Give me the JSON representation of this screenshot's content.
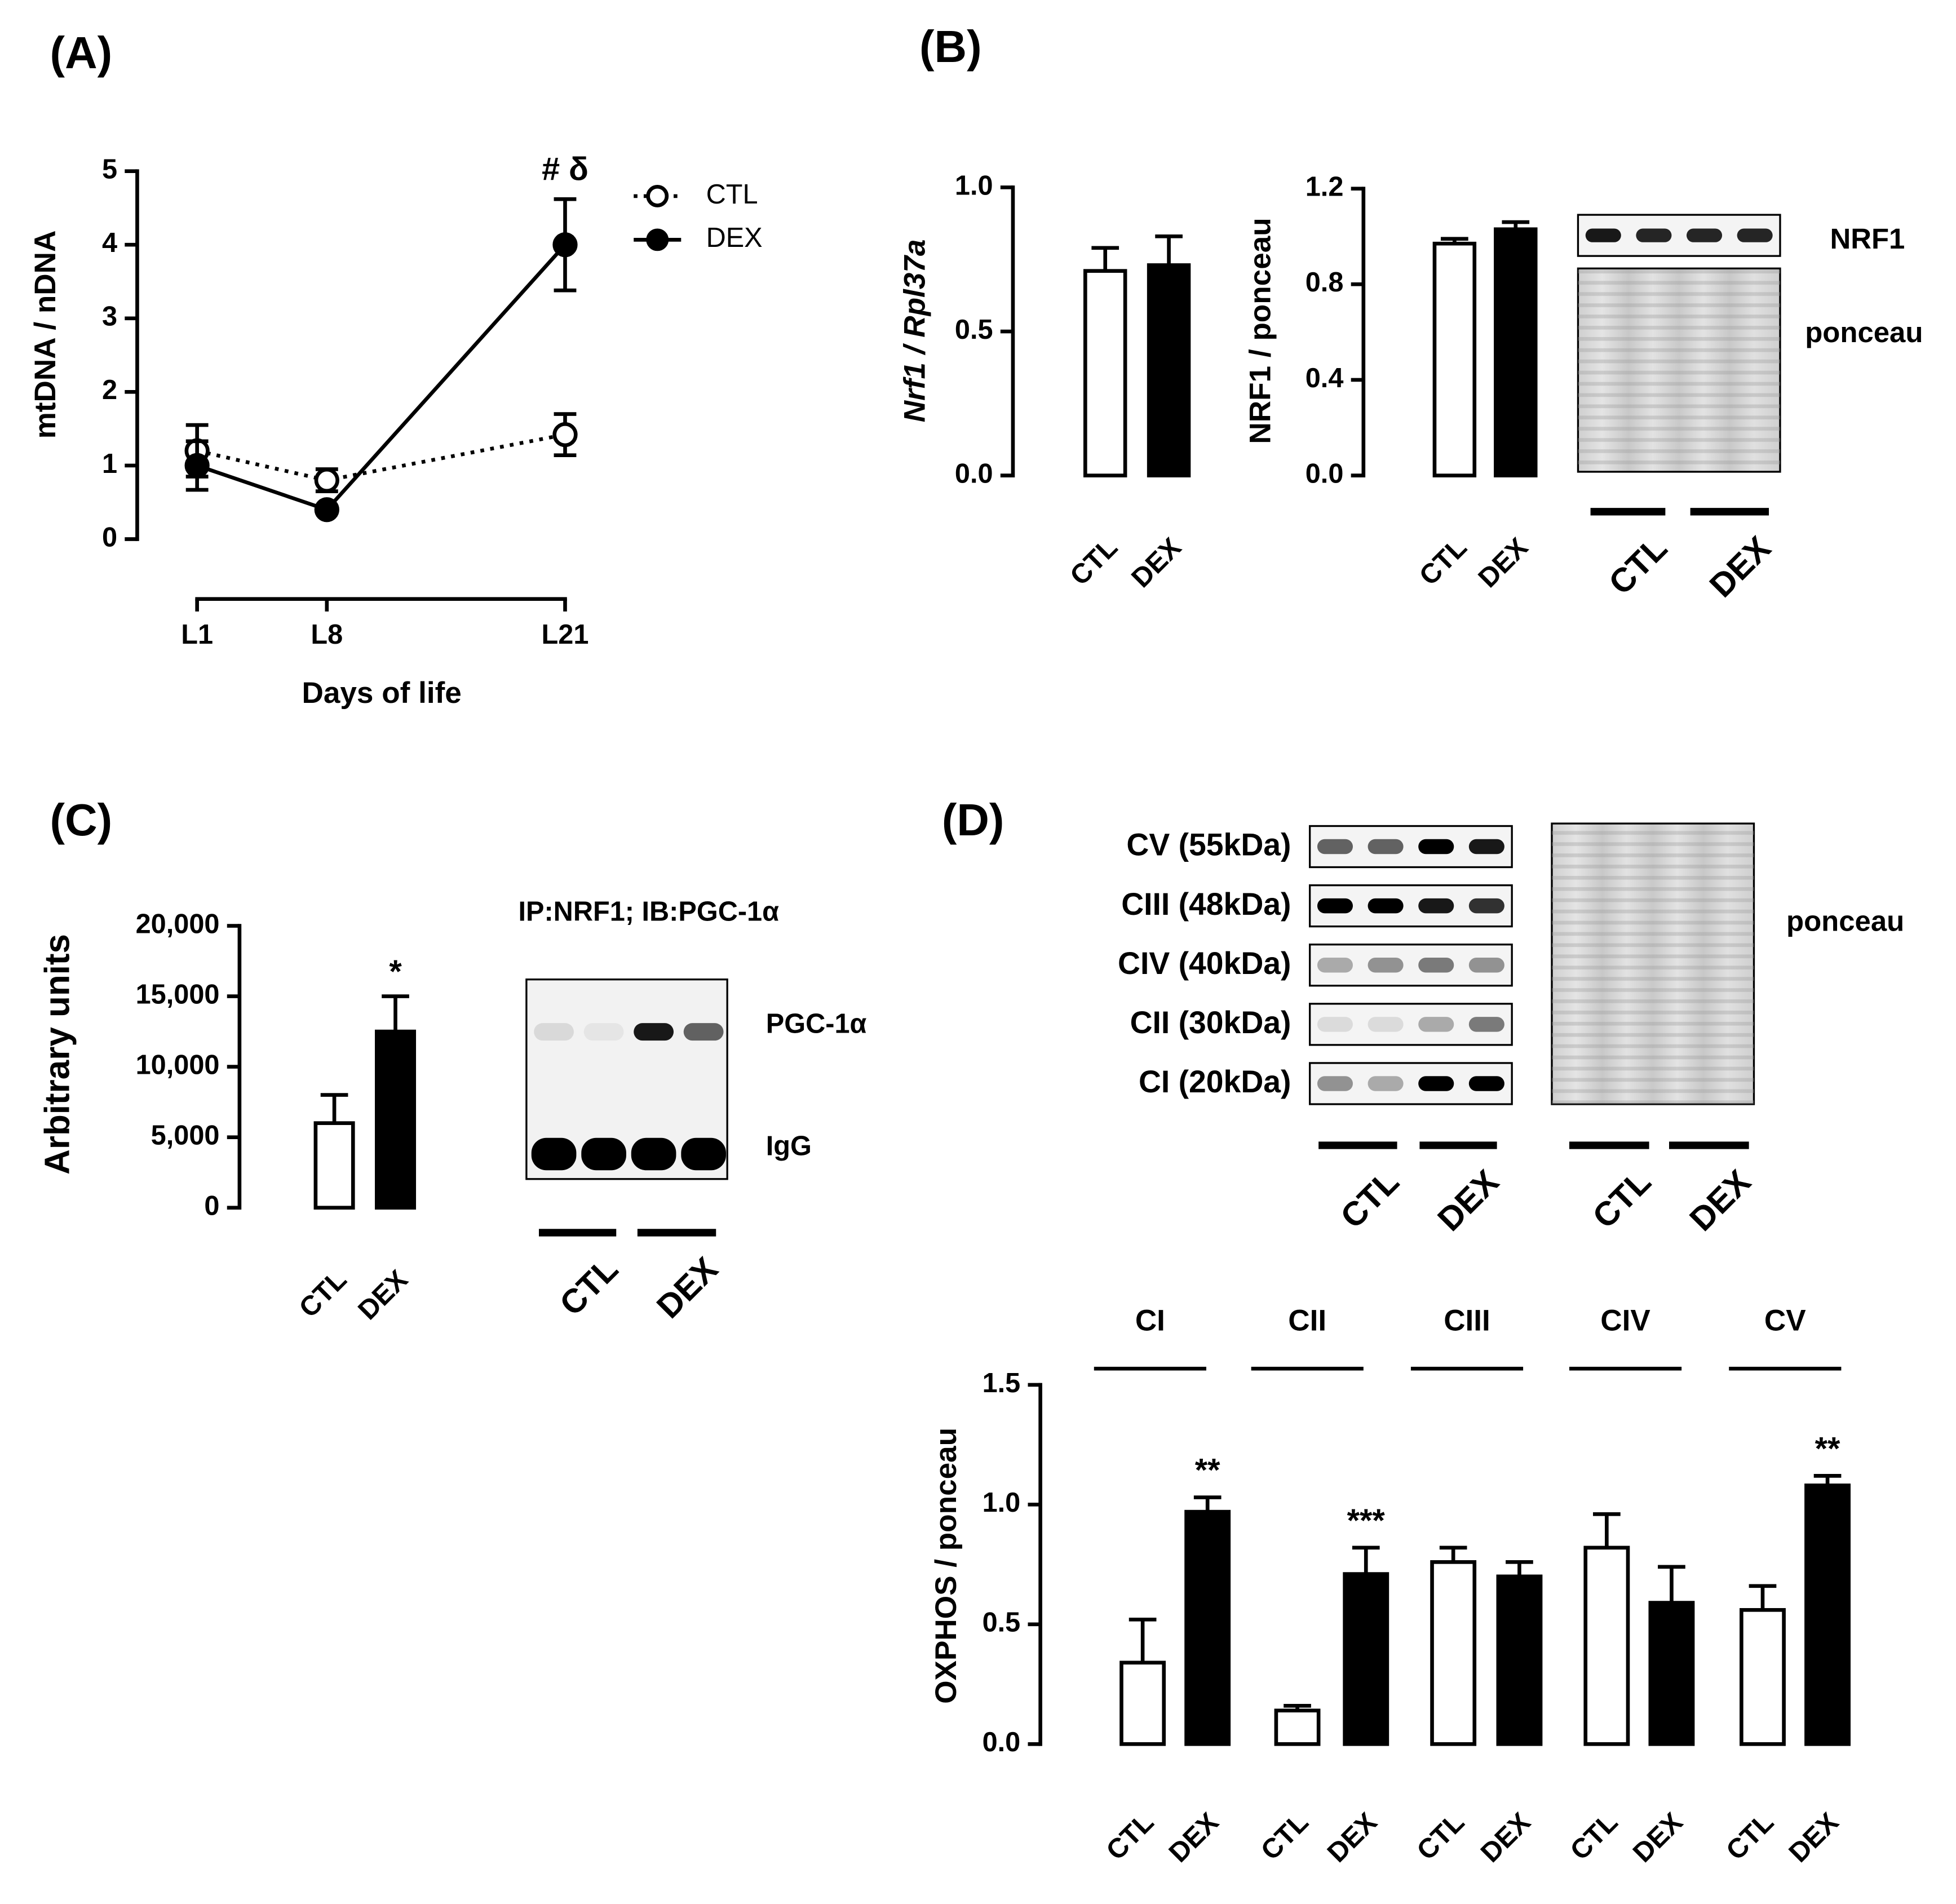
{
  "chart_data": [
    {
      "type": "line",
      "panel_label": "(A)",
      "ylabel": "mtDNA / nDNA",
      "xlabel": "Days of life",
      "categories": [
        "L1",
        "L8",
        "L21"
      ],
      "series": [
        {
          "name": "CTL",
          "color": "#ffffff",
          "values": [
            1.2,
            0.8,
            1.42
          ],
          "errors": [
            0.35,
            0.15,
            0.28
          ]
        },
        {
          "name": "DEX",
          "color": "#000000",
          "values": [
            1.0,
            0.4,
            4.0
          ],
          "errors": [
            0.33,
            0.03,
            0.62
          ]
        }
      ],
      "ylim": [
        0,
        5
      ],
      "yticks": [
        0,
        1,
        2,
        3,
        4,
        5
      ],
      "annotations": [
        {
          "text": "# δ",
          "category": "L21"
        }
      ]
    },
    {
      "type": "bar",
      "panel_label": "(B)",
      "ylabel": "Nrf1 / Rpl37a",
      "categories": [
        "CTL",
        "DEX"
      ],
      "values": [
        0.71,
        0.73
      ],
      "errors": [
        0.08,
        0.1
      ],
      "colors": [
        "#ffffff",
        "#000000"
      ],
      "ylim": [
        0,
        1
      ],
      "yticks": [
        {
          "value": 0,
          "label": "0.0"
        },
        {
          "value": 0.5,
          "label": "0.5"
        },
        {
          "value": 1,
          "label": "1.0"
        }
      ]
    },
    {
      "type": "bar",
      "ylabel": "NRF1 / ponceau",
      "categories": [
        "CTL",
        "DEX"
      ],
      "values": [
        0.97,
        1.03
      ],
      "errors": [
        0.02,
        0.03
      ],
      "colors": [
        "#ffffff",
        "#000000"
      ],
      "ylim": [
        0,
        1.2
      ],
      "yticks": [
        {
          "value": 0,
          "label": "0.0"
        },
        {
          "value": 0.4,
          "label": "0.4"
        },
        {
          "value": 0.8,
          "label": "0.8"
        },
        {
          "value": 1.2,
          "label": "1.2"
        }
      ],
      "blot": {
        "bands": [
          "NRF1",
          "ponceau"
        ],
        "groups": [
          "CTL",
          "DEX"
        ]
      }
    },
    {
      "type": "bar",
      "panel_label": "(C)",
      "ylabel": "Arbitrary units",
      "categories": [
        "CTL",
        "DEX"
      ],
      "values": [
        6000,
        12500
      ],
      "errors": [
        2000,
        2500
      ],
      "colors": [
        "#ffffff",
        "#000000"
      ],
      "ylim": [
        0,
        20000
      ],
      "yticks": [
        0,
        {
          "value": 5000,
          "label": "5,000"
        },
        {
          "value": 10000,
          "label": "10,000"
        },
        {
          "value": 15000,
          "label": "15,000"
        },
        {
          "value": 20000,
          "label": "20,000"
        }
      ],
      "annotations": [
        {
          "text": "*",
          "category": "DEX"
        }
      ],
      "blot": {
        "title": "IP:NRF1; IB:PGC-1α",
        "bands": [
          "PGC-1α",
          "IgG"
        ],
        "groups": [
          "CTL",
          "DEX"
        ]
      }
    },
    {
      "type": "grouped_bar",
      "panel_label": "(D)",
      "ylabel": "OXPHOS / ponceau",
      "groups": [
        "CI",
        "CII",
        "CIII",
        "CIV",
        "CV"
      ],
      "series": [
        {
          "name": "CTL",
          "color": "#ffffff",
          "values": [
            0.34,
            0.14,
            0.76,
            0.82,
            0.56
          ],
          "errors": [
            0.18,
            0.02,
            0.06,
            0.14,
            0.1
          ]
        },
        {
          "name": "DEX",
          "color": "#000000",
          "values": [
            0.97,
            0.71,
            0.7,
            0.59,
            1.08
          ],
          "errors": [
            0.06,
            0.11,
            0.06,
            0.15,
            0.04
          ]
        }
      ],
      "ylim": [
        0,
        1.5
      ],
      "yticks": [
        {
          "value": 0,
          "label": "0.0"
        },
        {
          "value": 0.5,
          "label": "0.5"
        },
        {
          "value": 1,
          "label": "1.0"
        },
        {
          "value": 1.5,
          "label": "1.5"
        }
      ],
      "annotations": [
        {
          "text": "**",
          "group": "CI",
          "series": "DEX"
        },
        {
          "text": "***",
          "group": "CII",
          "series": "DEX"
        },
        {
          "text": "**",
          "group": "CV",
          "series": "DEX"
        }
      ],
      "blots": [
        {
          "bands": [
            "CV (55kDa)",
            "CIII (48kDa)",
            "CIV (40kDa)",
            "CII (30kDa)",
            "CI (20kDa)"
          ],
          "groups": [
            "CTL",
            "DEX"
          ]
        },
        {
          "bands": [
            "ponceau"
          ],
          "groups": [
            "CTL",
            "DEX"
          ]
        }
      ]
    }
  ]
}
